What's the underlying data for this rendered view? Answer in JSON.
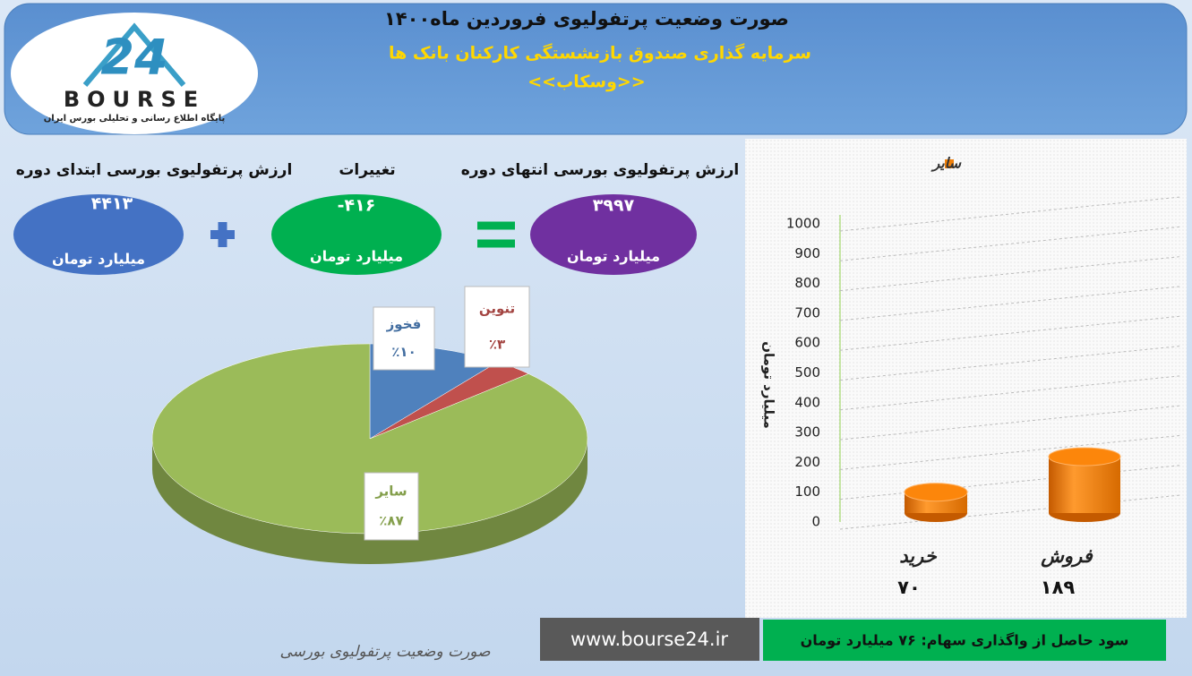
{
  "header": {
    "title": "صورت وضعیت پرتفولیوی فروردین ماه۱۴۰۰",
    "subtitle": "سرمایه گذاری صندوق بازنشستگی کارکنان بانک ها",
    "fund": "<<وسکاب>>"
  },
  "logo": {
    "number": "24",
    "brand": "BOURSE",
    "tagline": "پایگاه اطلاع رسانی و تحلیلی بورس ایران"
  },
  "summary": {
    "items": [
      {
        "label": "ارزش پرتفولیوی بورسی ابتدای دوره",
        "value": "۴۴۱۳",
        "unit": "میلیارد تومان"
      },
      {
        "label": "تغییرات",
        "value": "-۴۱۶",
        "unit": "میلیارد تومان"
      },
      {
        "label": "ارزش پرتفولیوی بورسی انتهای دوره",
        "value": "۳۹۹۷",
        "unit": "میلیارد تومان"
      }
    ]
  },
  "chart_data": [
    {
      "type": "pie",
      "categories": [
        "فخوز",
        "تنوین",
        "سایر"
      ],
      "values": [
        10,
        3,
        87
      ],
      "value_labels": [
        "٪۱۰",
        "٪۳",
        "٪۸۷"
      ],
      "colors": [
        "#4f81bd",
        "#c0504d",
        "#9bbb59"
      ]
    },
    {
      "type": "bar",
      "y_label": "میلیارد تومان",
      "categories": [
        "خرید",
        "فروش"
      ],
      "series": [
        {
          "name": "سایر",
          "color": "#f0800a",
          "values": [
            70,
            189
          ],
          "value_labels": [
            "۷۰",
            "۱۸۹"
          ]
        }
      ],
      "ylim": [
        0,
        1000
      ],
      "yticks": [
        0,
        100,
        200,
        300,
        400,
        500,
        600,
        700,
        800,
        900,
        1000
      ],
      "grid": true,
      "legend": "top-left"
    }
  ],
  "footer": {
    "profit": "سود حاصل از واگذاری سهام: ۷۶ میلیارد تومان",
    "site": "www.bourse24.ir",
    "caption": "صورت وضعیت پرتفولیوی بورسی"
  }
}
